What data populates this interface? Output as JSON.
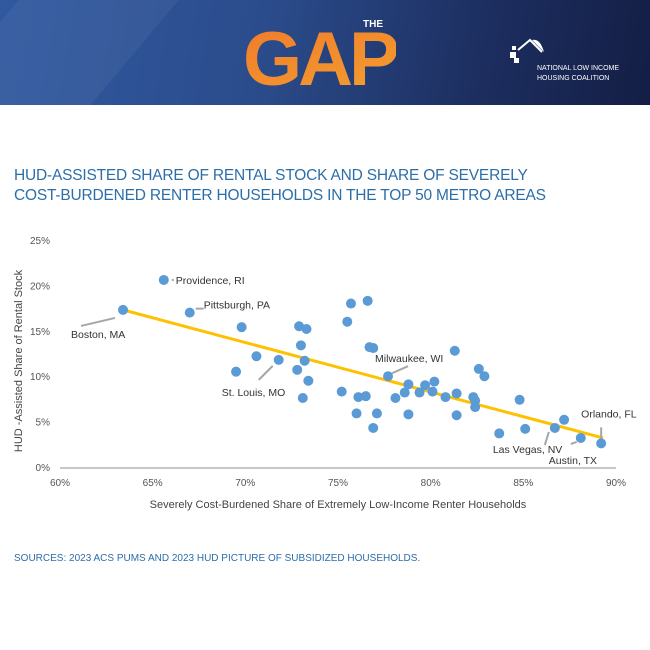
{
  "header": {
    "logo_the": "THE",
    "logo_gap": "GAP",
    "org_line1": "NATIONAL LOW INCOME",
    "org_line2": "HOUSING COALITION"
  },
  "title_line1": "HUD-ASSISTED SHARE OF RENTAL STOCK AND SHARE OF SEVERELY",
  "title_line2": "COST-BURDENED RENTER HOUSEHOLDS IN THE TOP 50 METRO AREAS",
  "sources": "SOURCES: 2023 ACS PUMS AND 2023 HUD PICTURE OF SUBSIDIZED HOUSEHOLDS.",
  "chart_data": {
    "type": "scatter",
    "xlabel": "Severely Cost-Burdened Share of Extremely Low-Income Renter Households",
    "ylabel": "HUD -Assisted Share of Rental Stock",
    "xlim": [
      60,
      90
    ],
    "ylim": [
      0,
      25
    ],
    "xticks": [
      "60%",
      "65%",
      "70%",
      "75%",
      "80%",
      "85%",
      "90%"
    ],
    "yticks": [
      "0%",
      "5%",
      "10%",
      "15%",
      "20%",
      "25%"
    ],
    "point_color": "#5b9bd5",
    "trend_color": "#ffc000",
    "points": [
      {
        "x": 63.4,
        "y": 17.3,
        "label": "Boston, MA"
      },
      {
        "x": 65.6,
        "y": 20.6,
        "label": "Providence, RI"
      },
      {
        "x": 67.0,
        "y": 17.0,
        "label": "Pittsburgh, PA"
      },
      {
        "x": 69.8,
        "y": 15.4
      },
      {
        "x": 70.6,
        "y": 12.2
      },
      {
        "x": 69.5,
        "y": 10.5
      },
      {
        "x": 71.8,
        "y": 11.8,
        "label": "St. Louis, MO"
      },
      {
        "x": 72.9,
        "y": 15.5
      },
      {
        "x": 73.3,
        "y": 15.2
      },
      {
        "x": 73.0,
        "y": 13.4
      },
      {
        "x": 73.2,
        "y": 11.7
      },
      {
        "x": 72.8,
        "y": 10.7
      },
      {
        "x": 73.4,
        "y": 9.5
      },
      {
        "x": 73.1,
        "y": 7.6
      },
      {
        "x": 76.6,
        "y": 18.3
      },
      {
        "x": 75.7,
        "y": 18.0
      },
      {
        "x": 75.5,
        "y": 16.0
      },
      {
        "x": 76.7,
        "y": 13.2
      },
      {
        "x": 76.9,
        "y": 13.1
      },
      {
        "x": 77.7,
        "y": 10.0,
        "label": "Milwaukee, WI"
      },
      {
        "x": 75.2,
        "y": 8.3
      },
      {
        "x": 76.1,
        "y": 7.7
      },
      {
        "x": 76.5,
        "y": 7.8
      },
      {
        "x": 76.0,
        "y": 5.9
      },
      {
        "x": 77.1,
        "y": 5.9
      },
      {
        "x": 76.9,
        "y": 4.3
      },
      {
        "x": 78.1,
        "y": 7.6
      },
      {
        "x": 78.6,
        "y": 8.2
      },
      {
        "x": 78.8,
        "y": 9.1
      },
      {
        "x": 79.4,
        "y": 8.2
      },
      {
        "x": 79.7,
        "y": 9.0
      },
      {
        "x": 80.1,
        "y": 8.3
      },
      {
        "x": 80.2,
        "y": 9.4
      },
      {
        "x": 78.8,
        "y": 5.8
      },
      {
        "x": 80.8,
        "y": 7.7
      },
      {
        "x": 81.4,
        "y": 8.1
      },
      {
        "x": 81.3,
        "y": 12.8
      },
      {
        "x": 81.4,
        "y": 5.7
      },
      {
        "x": 82.3,
        "y": 7.7
      },
      {
        "x": 82.4,
        "y": 7.3
      },
      {
        "x": 82.4,
        "y": 6.6
      },
      {
        "x": 82.6,
        "y": 10.8
      },
      {
        "x": 82.9,
        "y": 10.0
      },
      {
        "x": 83.7,
        "y": 3.7
      },
      {
        "x": 84.8,
        "y": 7.4
      },
      {
        "x": 85.1,
        "y": 4.2
      },
      {
        "x": 86.7,
        "y": 4.3,
        "label": "Las Vegas, NV"
      },
      {
        "x": 87.2,
        "y": 5.2
      },
      {
        "x": 88.1,
        "y": 3.2,
        "label": "Austin, TX"
      },
      {
        "x": 89.2,
        "y": 2.6,
        "label": "Orlando, FL"
      }
    ],
    "trendline": {
      "x": [
        63.4,
        89.3
      ],
      "y": [
        17.3,
        3.2
      ]
    }
  }
}
